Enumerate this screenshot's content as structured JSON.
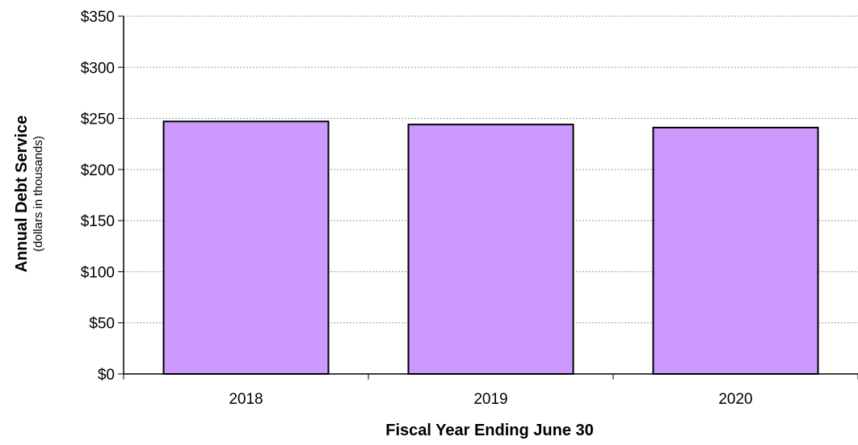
{
  "chart_data": {
    "type": "bar",
    "categories": [
      "2018",
      "2019",
      "2020"
    ],
    "values": [
      247,
      244,
      241
    ],
    "xlabel": "Fiscal Year Ending June 30",
    "ylabel": "Annual Debt Service",
    "ylabel_sub": "(dollars in thousands)",
    "ylim": [
      0,
      350
    ],
    "y_ticks": [
      0,
      50,
      100,
      150,
      200,
      250,
      300,
      350
    ],
    "y_tick_labels": [
      "$0",
      "$50",
      "$100",
      "$150",
      "$200",
      "$250",
      "$300",
      "$350"
    ],
    "grid": true,
    "bar_color": "#cc99ff",
    "bar_edge_color": "#000000",
    "grid_color": "#9a9a9a"
  }
}
